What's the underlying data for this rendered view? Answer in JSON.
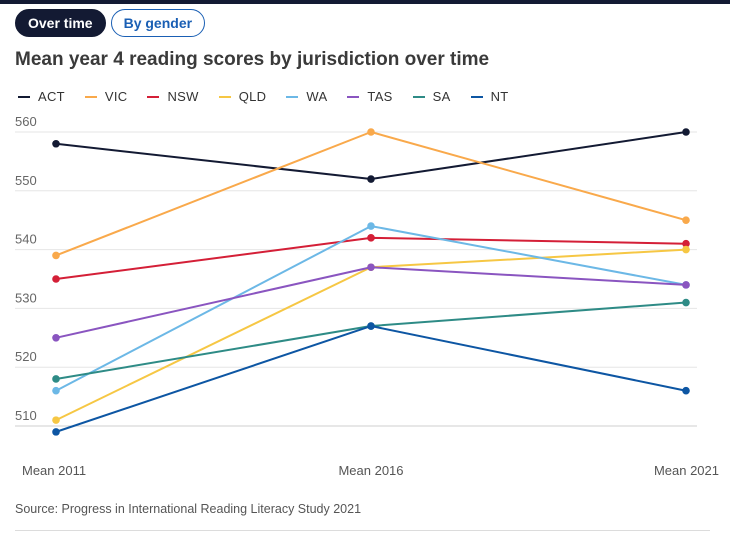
{
  "tabs": [
    {
      "label": "Over time",
      "active": true
    },
    {
      "label": "By gender",
      "active": false
    }
  ],
  "chart_data": {
    "type": "line",
    "title": "Mean year 4 reading scores by jurisdiction over time",
    "categories": [
      "Mean 2011",
      "Mean 2016",
      "Mean 2021"
    ],
    "ylim": [
      510,
      560
    ],
    "yticks": [
      510,
      520,
      530,
      540,
      550,
      560
    ],
    "grid": true,
    "legend_placement": "top-left",
    "series": [
      {
        "name": "ACT",
        "color": "#131a33",
        "values": [
          558,
          552,
          560
        ]
      },
      {
        "name": "VIC",
        "color": "#f9a94b",
        "values": [
          539,
          560,
          545
        ]
      },
      {
        "name": "NSW",
        "color": "#d41f37",
        "values": [
          535,
          542,
          541
        ]
      },
      {
        "name": "QLD",
        "color": "#f6c744",
        "values": [
          511,
          537,
          540
        ]
      },
      {
        "name": "WA",
        "color": "#6cb8e6",
        "values": [
          516,
          544,
          534
        ]
      },
      {
        "name": "TAS",
        "color": "#8a55c0",
        "values": [
          525,
          537,
          534
        ]
      },
      {
        "name": "SA",
        "color": "#2e8b86",
        "values": [
          518,
          527,
          531
        ]
      },
      {
        "name": "NT",
        "color": "#0d56a3",
        "values": [
          509,
          527,
          516
        ]
      }
    ]
  },
  "source": "Source: Progress in International Reading Literacy Study 2021"
}
